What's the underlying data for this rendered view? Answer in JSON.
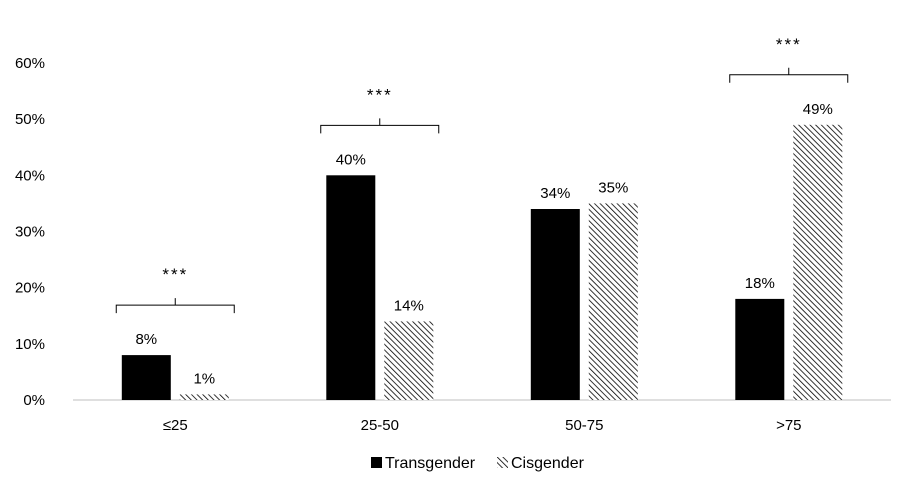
{
  "chart_data": {
    "type": "bar",
    "title": "",
    "xlabel": "",
    "ylabel": "",
    "categories": [
      "≤25",
      "25-50",
      "50-75",
      ">75"
    ],
    "series": [
      {
        "name": "Transgender",
        "values": [
          8,
          40,
          34,
          18
        ],
        "labels": [
          "8%",
          "40%",
          "34%",
          "18%"
        ],
        "fill": "solid",
        "color": "#000000"
      },
      {
        "name": "Cisgender",
        "values": [
          1,
          14,
          35,
          49
        ],
        "labels": [
          "1%",
          "14%",
          "35%",
          "49%"
        ],
        "fill": "diagonal-hatch",
        "color": "#000000"
      }
    ],
    "ylim": [
      0,
      60
    ],
    "y_ticks": [
      0,
      10,
      20,
      30,
      40,
      50,
      60
    ],
    "y_tick_labels": [
      "0%",
      "10%",
      "20%",
      "30%",
      "40%",
      "50%",
      "60%"
    ],
    "y_unit": "%",
    "significance": [
      {
        "category": "≤25",
        "label": "***"
      },
      {
        "category": "25-50",
        "label": "***"
      },
      {
        "category": ">75",
        "label": "***"
      }
    ],
    "grid": false,
    "legend_position": "bottom-center"
  }
}
